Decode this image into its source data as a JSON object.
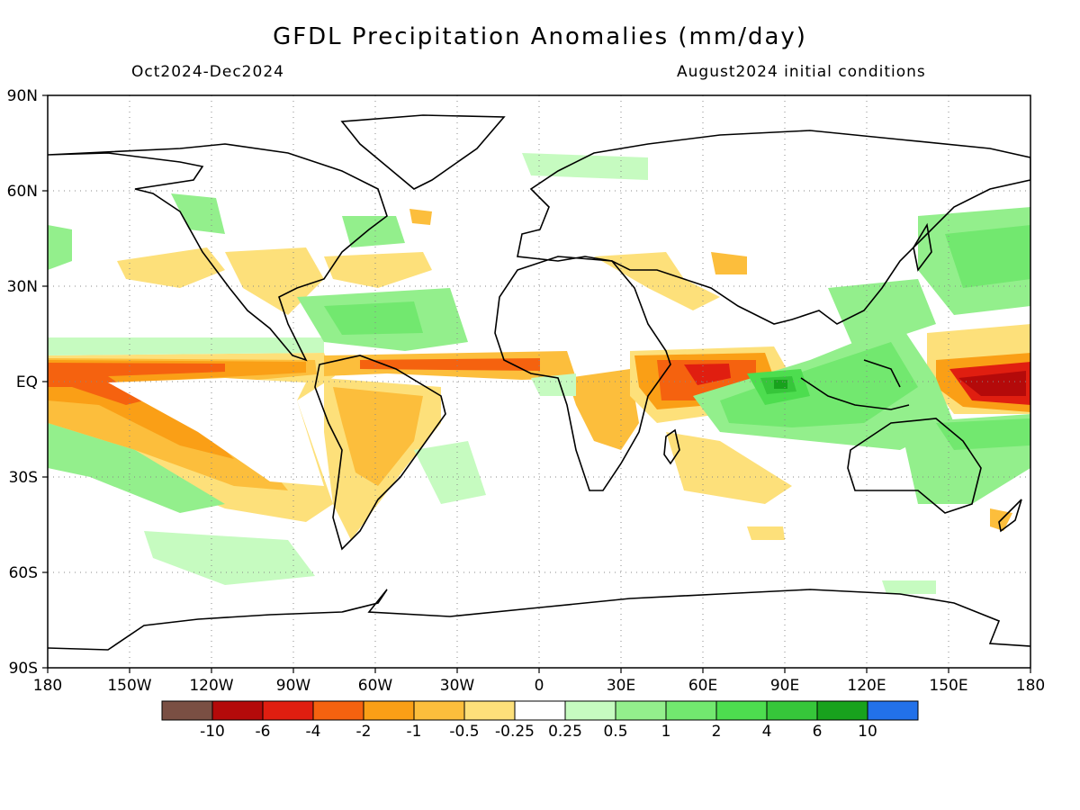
{
  "header": {
    "title": "GFDL Precipitation Anomalies (mm/day)",
    "period": "Oct2024-Dec2024",
    "initial_conditions": "August2024 initial conditions"
  },
  "axes": {
    "lat_labels": [
      "90N",
      "60N",
      "30N",
      "EQ",
      "30S",
      "60S",
      "90S"
    ],
    "lon_labels": [
      "180",
      "150W",
      "120W",
      "90W",
      "60W",
      "30W",
      "0",
      "30E",
      "60E",
      "90E",
      "120E",
      "150E",
      "180"
    ]
  },
  "legend": {
    "colors": [
      "#7a4f43",
      "#b40a0a",
      "#e01e10",
      "#f5620f",
      "#fa9f16",
      "#fcbe3c",
      "#fde07a",
      "#ffffff",
      "#c6fbc0",
      "#93ef8c",
      "#72e86f",
      "#4ddd4f",
      "#36c63a",
      "#18a21d",
      "#2271e9"
    ],
    "labels": [
      "-10",
      "-6",
      "-4",
      "-2",
      "-1",
      "-0.5",
      "-0.25",
      "0.25",
      "0.5",
      "1",
      "2",
      "4",
      "6",
      "10"
    ]
  }
}
